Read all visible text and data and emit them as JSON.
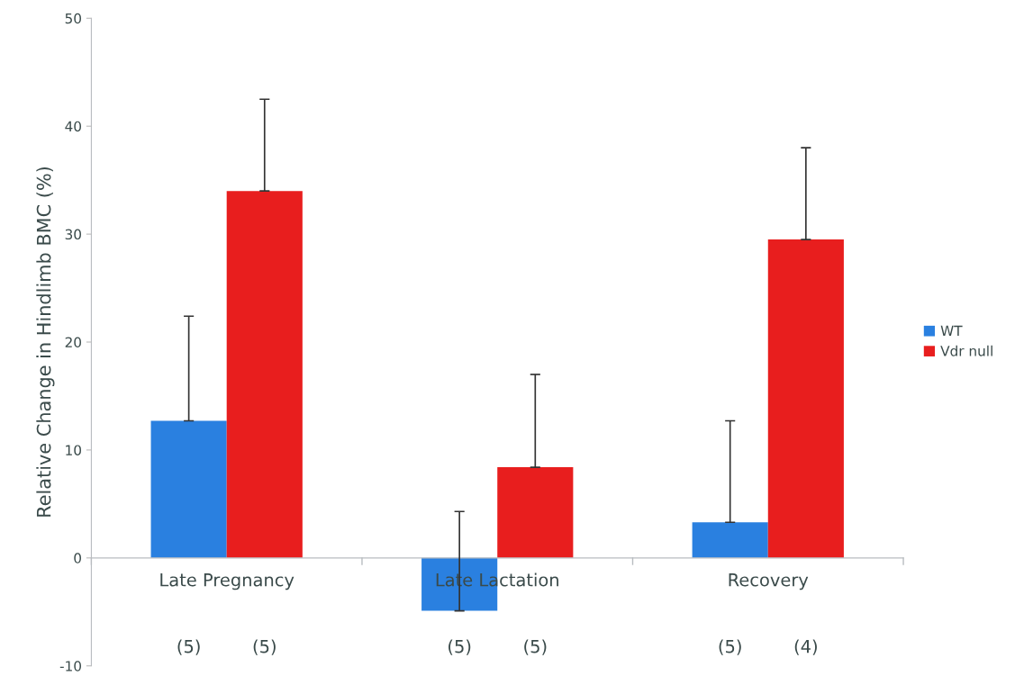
{
  "chart_data": {
    "type": "bar",
    "ylabel": "Relative Change in Hindlimb BMC (%)",
    "categories": [
      "Late Pregnancy",
      "Late Lactation",
      "Recovery"
    ],
    "series": [
      {
        "name": "WT",
        "color": "#2a80e0",
        "values": [
          12.7,
          -4.9,
          3.3
        ],
        "errors": [
          [
            12.7,
            22.4
          ],
          [
            -4.9,
            4.3
          ],
          [
            3.3,
            12.7
          ]
        ]
      },
      {
        "name": "Vdr null",
        "color": "#e81e1e",
        "values": [
          34.0,
          8.4,
          29.5
        ],
        "errors": [
          [
            34.0,
            42.5
          ],
          [
            8.4,
            17.0
          ],
          [
            29.5,
            38.0
          ]
        ]
      }
    ],
    "ylim": [
      -10,
      50
    ],
    "yticks": [
      -10,
      0,
      10,
      20,
      30,
      40,
      50
    ],
    "grid": false,
    "legend": "right",
    "annotations": [
      "(5)",
      "(5)",
      "(5)",
      "(5)",
      "(5)",
      "(4)"
    ]
  }
}
